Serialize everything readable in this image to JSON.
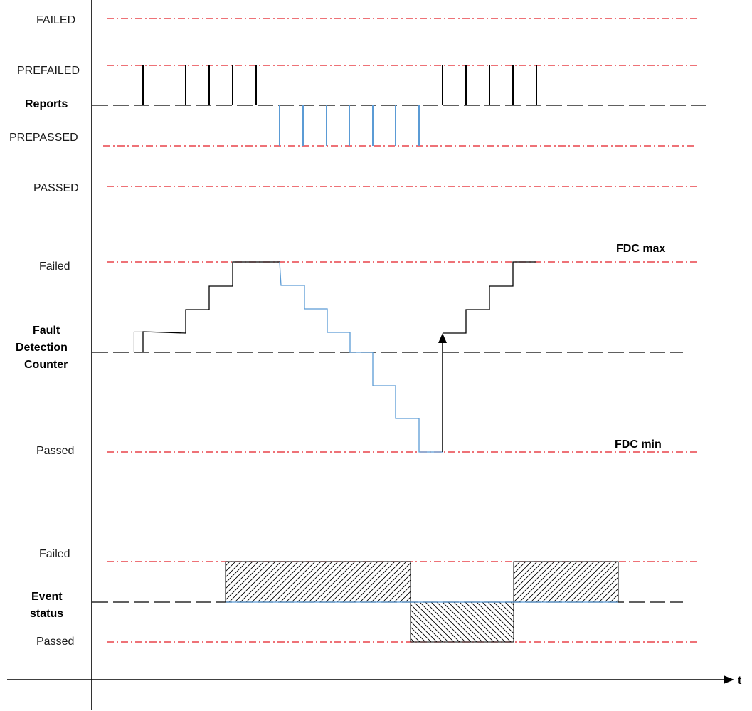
{
  "reports": {
    "failed": "FAILED",
    "prefailed": "PREFAILED",
    "title": "Reports",
    "prepassed": "PREPASSED",
    "passed": "PASSED"
  },
  "fdc": {
    "failed": "Failed",
    "title_line1": "Fault",
    "title_line2": "Detection",
    "title_line3": "Counter",
    "passed": "Passed",
    "max_label": "FDC max",
    "min_label": "FDC min"
  },
  "event": {
    "failed": "Failed",
    "title_line1": "Event",
    "title_line2": "status",
    "passed": "Passed"
  },
  "time_axis": {
    "label": "t"
  },
  "colors": {
    "threshold": "#e41e26",
    "failing": "#000000",
    "passing": "#5b9bd5"
  }
}
